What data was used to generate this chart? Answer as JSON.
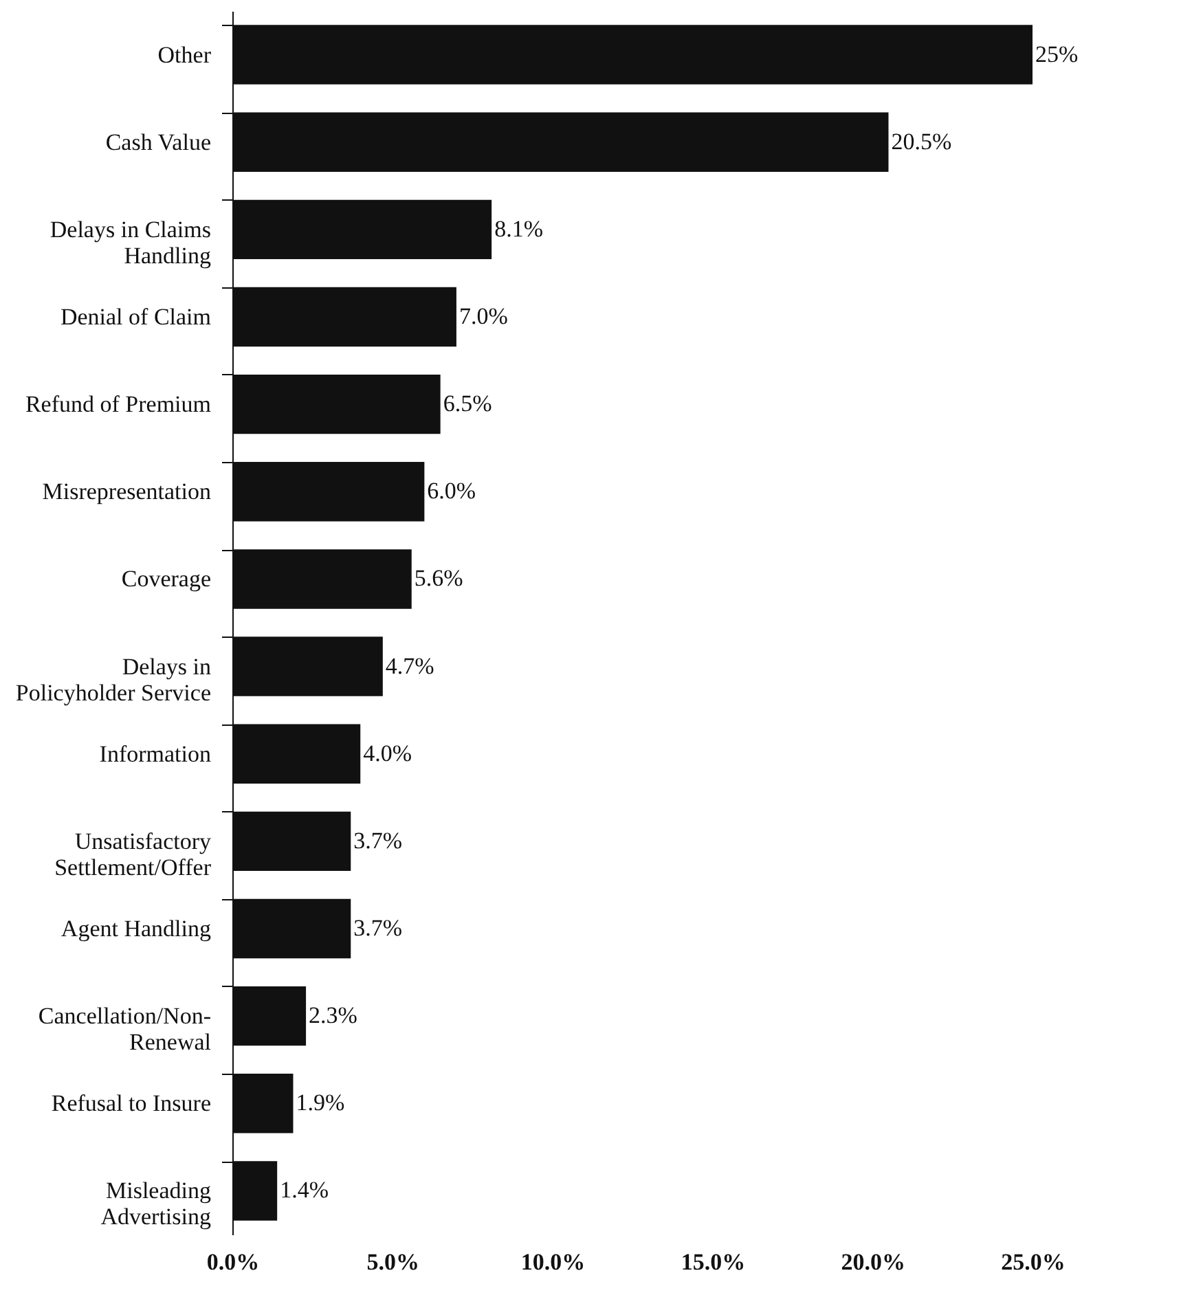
{
  "chart_data": {
    "type": "bar",
    "orientation": "horizontal",
    "categories": [
      "Other",
      "Cash Value",
      "Delays in Claims\nHandling",
      "Denial of Claim",
      "Refund of Premium",
      "Misrepresentation",
      "Coverage",
      "Delays in\nPolicyholder Service",
      "Information",
      "Unsatisfactory\nSettlement/Offer",
      "Agent Handling",
      "Cancellation/Non-\nRenewal",
      "Refusal to Insure",
      "Misleading\nAdvertising"
    ],
    "values": [
      25,
      20.5,
      8.1,
      7.0,
      6.5,
      6.0,
      5.6,
      4.7,
      4.0,
      3.7,
      3.7,
      2.3,
      1.9,
      1.4
    ],
    "value_labels": [
      "25%",
      "20.5%",
      "8.1%",
      "7.0%",
      "6.5%",
      "6.0%",
      "5.6%",
      "4.7%",
      "4.0%",
      "3.7%",
      "3.7%",
      "2.3%",
      "1.9%",
      "1.4%"
    ],
    "color": "#111111",
    "xlim": [
      0,
      25
    ],
    "xticks": [
      {
        "value": 0,
        "label": "0.0%"
      },
      {
        "value": 5,
        "label": "5.0%"
      },
      {
        "value": 10,
        "label": "10.0%"
      },
      {
        "value": 15,
        "label": "15.0%"
      },
      {
        "value": 20,
        "label": "20.0%"
      },
      {
        "value": 25,
        "label": "25.0%"
      }
    ],
    "grid": false
  }
}
